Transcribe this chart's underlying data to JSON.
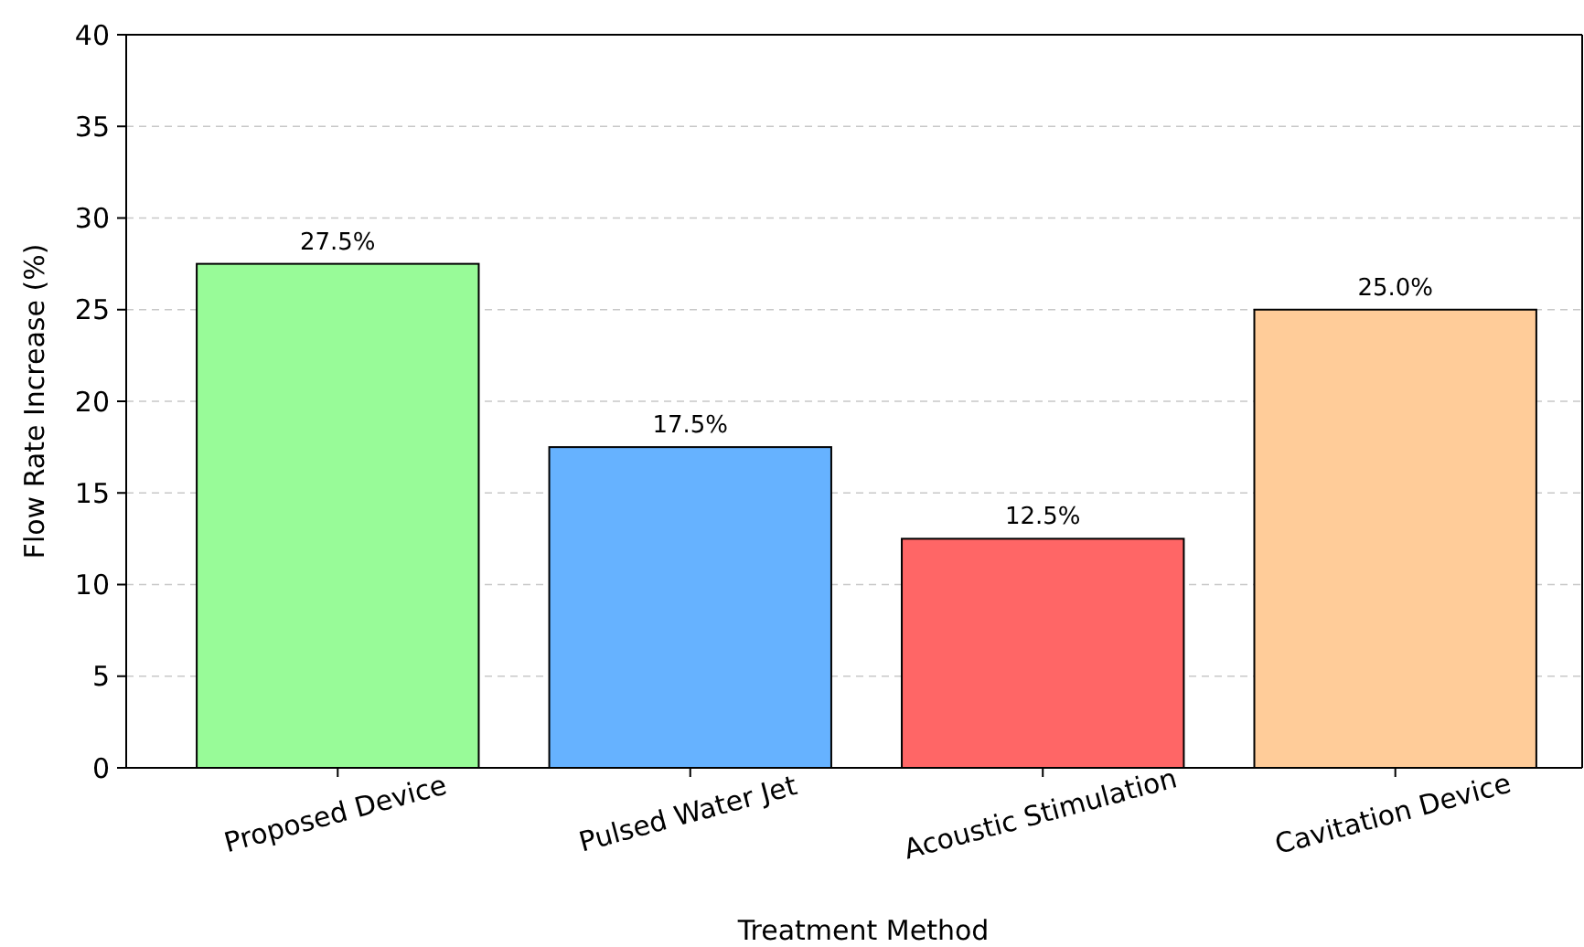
{
  "chart_data": {
    "type": "bar",
    "xlabel": "Treatment Method",
    "ylabel": "Flow Rate Increase (%)",
    "categories": [
      "Proposed Device",
      "Pulsed Water Jet",
      "Acoustic Stimulation",
      "Cavitation Device"
    ],
    "values": [
      27.5,
      17.5,
      12.5,
      25.0
    ],
    "colors": [
      "#98fb98",
      "#66b2ff",
      "#ff6666",
      "#ffcc99"
    ],
    "value_labels": [
      "27.5%",
      "17.5%",
      "12.5%",
      "25.0%"
    ],
    "ylim": [
      0,
      40
    ],
    "yticks": [
      0,
      5,
      10,
      15,
      20,
      25,
      30,
      35,
      40
    ],
    "grid": "y"
  }
}
